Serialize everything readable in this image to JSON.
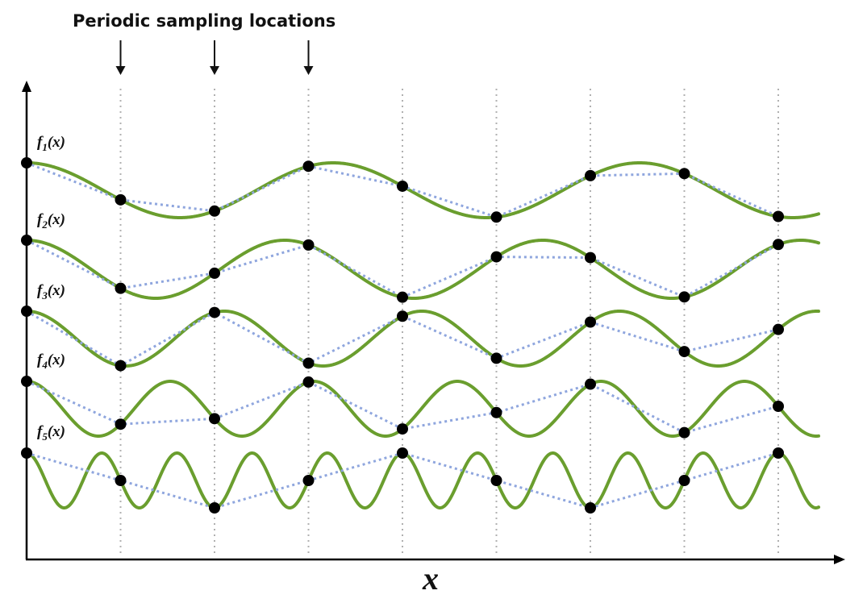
{
  "title": "Periodic sampling locations",
  "x_label": "x",
  "function_labels": [
    "f1(x)",
    "f2(x)",
    "f3(x)",
    "f4(x)",
    "f5(x)"
  ],
  "function_label_parts": [
    {
      "f": "f",
      "sub": "1",
      "arg": "(x)"
    },
    {
      "f": "f",
      "sub": "2",
      "arg": "(x)"
    },
    {
      "f": "f",
      "sub": "3",
      "arg": "(x)"
    },
    {
      "f": "f",
      "sub": "4",
      "arg": "(x)"
    },
    {
      "f": "f",
      "sub": "5",
      "arg": "(x)"
    }
  ],
  "sample_count": 9,
  "colors": {
    "curve": "#6a9e2e",
    "reconstruction": "#8fa6de",
    "sample_dot": "#000000",
    "sample_line": "#b0b0b0",
    "axis": "#000000"
  }
}
